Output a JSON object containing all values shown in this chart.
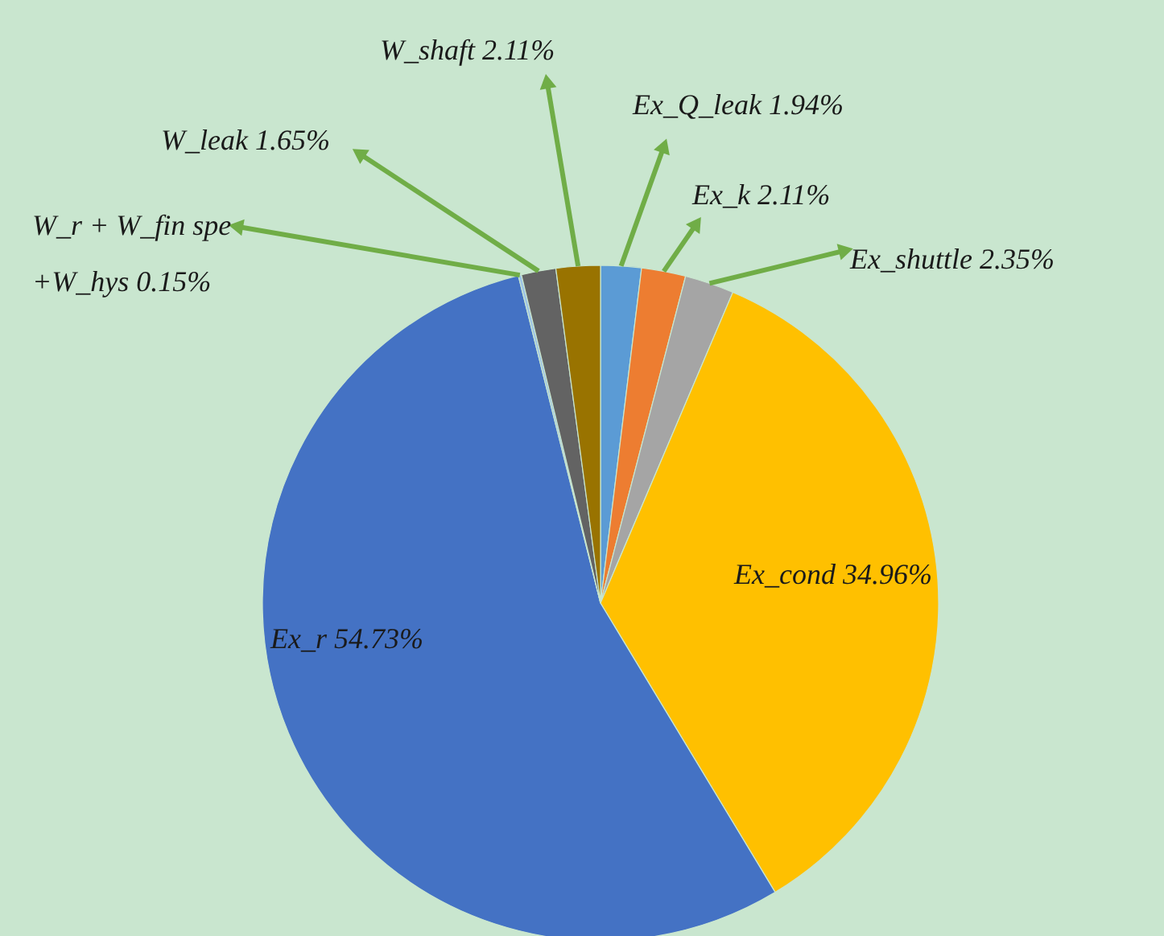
{
  "chart_data": {
    "type": "pie",
    "categories": [
      "Ex_Q_leak",
      "Ex_k",
      "Ex_shuttle",
      "Ex_cond",
      "Ex_r",
      "W_r + W_fin spe\n+W_hys",
      "W_leak",
      "W_shaft"
    ],
    "values": [
      1.94,
      2.11,
      2.35,
      34.96,
      54.73,
      0.15,
      1.65,
      2.11
    ],
    "value_labels": [
      "1.94%",
      "2.11%",
      "2.35%",
      "34.96%",
      "54.73%",
      "0.15%",
      "1.65%",
      "2.11%"
    ],
    "colors": [
      "#5b9bd5",
      "#ed7d31",
      "#a5a5a5",
      "#ffc000",
      "#4472c4",
      "#9dc3e6",
      "#636363",
      "#997300"
    ],
    "data_labels": true
  }
}
